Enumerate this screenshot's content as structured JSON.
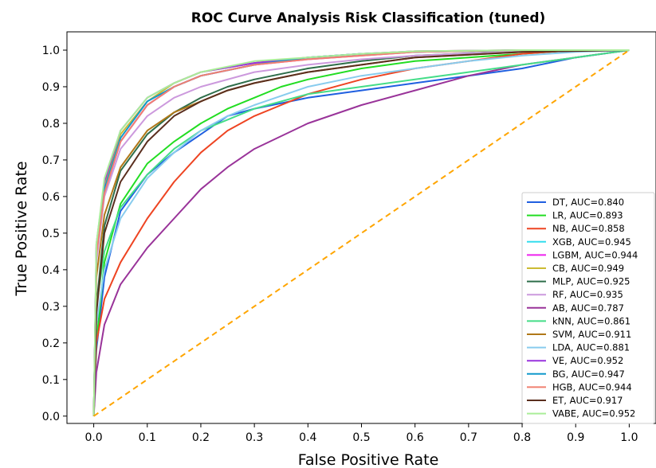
{
  "chart_data": {
    "type": "line",
    "title": "ROC Curve Analysis Risk Classification (tuned)",
    "xlabel": "False Positive Rate",
    "ylabel": "True Positive Rate",
    "xlim": [
      -0.05,
      1.05
    ],
    "ylim": [
      -0.02,
      1.05
    ],
    "xticks": [
      0.0,
      0.1,
      0.2,
      0.3,
      0.4,
      0.5,
      0.6,
      0.7,
      0.8,
      0.9,
      1.0
    ],
    "yticks": [
      0.0,
      0.1,
      0.2,
      0.3,
      0.4,
      0.5,
      0.6,
      0.7,
      0.8,
      0.9,
      1.0
    ],
    "xtick_labels": [
      "0.0",
      "0.1",
      "0.2",
      "0.3",
      "0.4",
      "0.5",
      "0.6",
      "0.7",
      "0.8",
      "0.9",
      "1.0"
    ],
    "ytick_labels": [
      "0.0",
      "0.1",
      "0.2",
      "0.3",
      "0.4",
      "0.5",
      "0.6",
      "0.7",
      "0.8",
      "0.9",
      "1.0"
    ],
    "grid": false,
    "legend_position": "lower-right",
    "diagonal": {
      "x": [
        0,
        1
      ],
      "y": [
        0,
        1
      ],
      "color": "#FFA500",
      "style": "dashed"
    },
    "series": [
      {
        "name": "DT, AUC=0.840",
        "color": "#1F5FE0",
        "x": [
          0,
          0.005,
          0.02,
          0.05,
          0.1,
          0.15,
          0.2,
          0.25,
          0.3,
          0.4,
          0.5,
          0.6,
          0.7,
          0.8,
          0.9,
          1.0
        ],
        "y": [
          0,
          0.18,
          0.38,
          0.56,
          0.66,
          0.72,
          0.77,
          0.82,
          0.84,
          0.87,
          0.89,
          0.91,
          0.93,
          0.95,
          0.98,
          1.0
        ]
      },
      {
        "name": "LR, AUC=0.893",
        "color": "#22DD22",
        "x": [
          0,
          0.005,
          0.02,
          0.05,
          0.1,
          0.15,
          0.2,
          0.25,
          0.3,
          0.35,
          0.4,
          0.5,
          0.6,
          0.7,
          0.8,
          0.9,
          1.0
        ],
        "y": [
          0,
          0.2,
          0.42,
          0.58,
          0.69,
          0.75,
          0.8,
          0.84,
          0.87,
          0.9,
          0.92,
          0.95,
          0.97,
          0.98,
          0.99,
          1.0,
          1.0
        ]
      },
      {
        "name": "NB, AUC=0.858",
        "color": "#EE4422",
        "x": [
          0,
          0.005,
          0.02,
          0.05,
          0.1,
          0.15,
          0.2,
          0.25,
          0.3,
          0.35,
          0.4,
          0.5,
          0.6,
          0.7,
          0.8,
          0.9,
          1.0
        ],
        "y": [
          0,
          0.2,
          0.32,
          0.42,
          0.54,
          0.64,
          0.72,
          0.78,
          0.82,
          0.85,
          0.88,
          0.92,
          0.95,
          0.97,
          0.99,
          1.0,
          1.0
        ]
      },
      {
        "name": "XGB, AUC=0.945",
        "color": "#33DDEE",
        "x": [
          0,
          0.005,
          0.02,
          0.05,
          0.1,
          0.15,
          0.2,
          0.3,
          0.4,
          0.5,
          0.6,
          0.8,
          1.0
        ],
        "y": [
          0,
          0.45,
          0.62,
          0.75,
          0.85,
          0.9,
          0.93,
          0.96,
          0.98,
          0.99,
          0.995,
          1.0,
          1.0
        ]
      },
      {
        "name": "LGBM, AUC=0.944",
        "color": "#EE22EE",
        "x": [
          0,
          0.005,
          0.02,
          0.05,
          0.1,
          0.15,
          0.2,
          0.3,
          0.4,
          0.5,
          0.6,
          0.8,
          1.0
        ],
        "y": [
          0,
          0.44,
          0.61,
          0.75,
          0.85,
          0.9,
          0.93,
          0.96,
          0.975,
          0.985,
          0.995,
          1.0,
          1.0
        ]
      },
      {
        "name": "CB, AUC=0.949",
        "color": "#CCBB33",
        "x": [
          0,
          0.005,
          0.02,
          0.05,
          0.1,
          0.15,
          0.2,
          0.3,
          0.4,
          0.5,
          0.6,
          0.8,
          1.0
        ],
        "y": [
          0,
          0.46,
          0.63,
          0.77,
          0.86,
          0.91,
          0.94,
          0.965,
          0.98,
          0.99,
          0.997,
          1.0,
          1.0
        ]
      },
      {
        "name": "MLP, AUC=0.925",
        "color": "#2E6E4A",
        "x": [
          0,
          0.005,
          0.02,
          0.05,
          0.1,
          0.15,
          0.2,
          0.25,
          0.3,
          0.4,
          0.5,
          0.6,
          0.8,
          1.0
        ],
        "y": [
          0,
          0.3,
          0.52,
          0.67,
          0.77,
          0.83,
          0.87,
          0.9,
          0.92,
          0.95,
          0.97,
          0.985,
          0.998,
          1.0
        ]
      },
      {
        "name": "RF, AUC=0.935",
        "color": "#CC99DD",
        "x": [
          0,
          0.005,
          0.02,
          0.05,
          0.1,
          0.15,
          0.2,
          0.3,
          0.4,
          0.5,
          0.6,
          0.8,
          1.0
        ],
        "y": [
          0,
          0.42,
          0.6,
          0.73,
          0.82,
          0.87,
          0.9,
          0.94,
          0.96,
          0.975,
          0.985,
          0.997,
          1.0
        ]
      },
      {
        "name": "AB, AUC=0.787",
        "color": "#993399",
        "x": [
          0,
          0.005,
          0.02,
          0.05,
          0.1,
          0.15,
          0.2,
          0.25,
          0.3,
          0.4,
          0.5,
          0.6,
          0.7,
          0.8,
          0.9,
          1.0
        ],
        "y": [
          0,
          0.12,
          0.25,
          0.36,
          0.46,
          0.54,
          0.62,
          0.68,
          0.73,
          0.8,
          0.85,
          0.89,
          0.93,
          0.96,
          0.98,
          1.0
        ]
      },
      {
        "name": "kNN, AUC=0.861",
        "color": "#44DD88",
        "x": [
          0,
          0.005,
          0.02,
          0.05,
          0.1,
          0.15,
          0.2,
          0.25,
          0.3,
          0.4,
          0.5,
          0.6,
          0.7,
          0.8,
          0.9,
          1.0
        ],
        "y": [
          0,
          0.3,
          0.45,
          0.57,
          0.66,
          0.73,
          0.78,
          0.81,
          0.84,
          0.88,
          0.9,
          0.92,
          0.94,
          0.96,
          0.98,
          1.0
        ]
      },
      {
        "name": "SVM, AUC=0.911",
        "color": "#B07818",
        "x": [
          0,
          0.005,
          0.02,
          0.05,
          0.1,
          0.15,
          0.2,
          0.25,
          0.3,
          0.4,
          0.5,
          0.6,
          0.8,
          1.0
        ],
        "y": [
          0,
          0.38,
          0.55,
          0.68,
          0.78,
          0.83,
          0.86,
          0.89,
          0.91,
          0.94,
          0.96,
          0.98,
          0.995,
          1.0
        ]
      },
      {
        "name": "LDA, AUC=0.881",
        "color": "#88CCEE",
        "x": [
          0,
          0.005,
          0.02,
          0.05,
          0.1,
          0.15,
          0.2,
          0.25,
          0.3,
          0.4,
          0.5,
          0.6,
          0.7,
          0.8,
          0.9,
          1.0
        ],
        "y": [
          0,
          0.25,
          0.4,
          0.54,
          0.65,
          0.72,
          0.78,
          0.82,
          0.85,
          0.9,
          0.93,
          0.95,
          0.97,
          0.985,
          0.995,
          1.0
        ]
      },
      {
        "name": "VE, AUC=0.952",
        "color": "#9933DD",
        "x": [
          0,
          0.005,
          0.02,
          0.05,
          0.1,
          0.15,
          0.2,
          0.3,
          0.4,
          0.5,
          0.6,
          0.8,
          1.0
        ],
        "y": [
          0,
          0.47,
          0.64,
          0.78,
          0.87,
          0.91,
          0.94,
          0.965,
          0.98,
          0.99,
          0.997,
          1.0,
          1.0
        ]
      },
      {
        "name": "BG, AUC=0.947",
        "color": "#1199CC",
        "x": [
          0,
          0.005,
          0.02,
          0.05,
          0.1,
          0.15,
          0.2,
          0.3,
          0.4,
          0.5,
          0.6,
          0.8,
          1.0
        ],
        "y": [
          0,
          0.45,
          0.62,
          0.76,
          0.86,
          0.9,
          0.93,
          0.96,
          0.98,
          0.99,
          0.995,
          1.0,
          1.0
        ]
      },
      {
        "name": "HGB, AUC=0.944",
        "color": "#F08070",
        "x": [
          0,
          0.005,
          0.02,
          0.05,
          0.1,
          0.15,
          0.2,
          0.3,
          0.4,
          0.5,
          0.6,
          0.8,
          1.0
        ],
        "y": [
          0,
          0.44,
          0.61,
          0.75,
          0.85,
          0.9,
          0.93,
          0.96,
          0.975,
          0.985,
          0.995,
          1.0,
          1.0
        ]
      },
      {
        "name": "ET, AUC=0.917",
        "color": "#5A2E1E",
        "x": [
          0,
          0.005,
          0.02,
          0.05,
          0.1,
          0.15,
          0.2,
          0.25,
          0.3,
          0.4,
          0.5,
          0.6,
          0.8,
          1.0
        ],
        "y": [
          0,
          0.28,
          0.5,
          0.64,
          0.75,
          0.82,
          0.86,
          0.89,
          0.91,
          0.94,
          0.96,
          0.98,
          0.995,
          1.0
        ]
      },
      {
        "name": "VABE, AUC=0.952",
        "color": "#AAEE99",
        "x": [
          0,
          0.005,
          0.02,
          0.05,
          0.1,
          0.15,
          0.2,
          0.3,
          0.4,
          0.5,
          0.6,
          0.8,
          1.0
        ],
        "y": [
          0,
          0.47,
          0.65,
          0.78,
          0.87,
          0.91,
          0.94,
          0.97,
          0.98,
          0.99,
          0.997,
          1.0,
          1.0
        ]
      }
    ]
  }
}
